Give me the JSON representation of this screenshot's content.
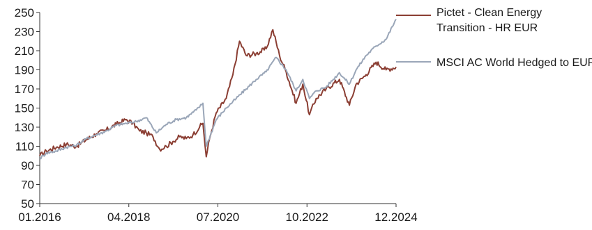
{
  "chart_data": {
    "type": "line",
    "x_tick_labels": [
      "01.2016",
      "04.2018",
      "07.2020",
      "10.2022",
      "12.2024"
    ],
    "x_range": [
      "2016-01",
      "2024-12"
    ],
    "ylim": [
      50,
      250
    ],
    "y_ticks": [
      50,
      70,
      90,
      110,
      130,
      150,
      170,
      190,
      210,
      230,
      250
    ],
    "grid": false,
    "legend_position": "right",
    "series": [
      {
        "name": "Pictet - Clean Energy Transition - HR EUR",
        "legend_lines": [
          "Pictet - Clean Energy",
          "Transition - HR EUR"
        ],
        "color": "#8b3e33",
        "points": [
          [
            "2016-01",
            100
          ],
          [
            "2016-03",
            105
          ],
          [
            "2016-06",
            109
          ],
          [
            "2016-09",
            112
          ],
          [
            "2016-12",
            110
          ],
          [
            "2017-03",
            117
          ],
          [
            "2017-06",
            123
          ],
          [
            "2017-09",
            127
          ],
          [
            "2017-12",
            133
          ],
          [
            "2018-03",
            138
          ],
          [
            "2018-05",
            134
          ],
          [
            "2018-07",
            126
          ],
          [
            "2018-09",
            124
          ],
          [
            "2018-11",
            120
          ],
          [
            "2019-01",
            107
          ],
          [
            "2019-03",
            110
          ],
          [
            "2019-05",
            115
          ],
          [
            "2019-07",
            120
          ],
          [
            "2019-09",
            118
          ],
          [
            "2019-11",
            122
          ],
          [
            "2020-01",
            130
          ],
          [
            "2020-02",
            134
          ],
          [
            "2020-03",
            99
          ],
          [
            "2020-04",
            118
          ],
          [
            "2020-06",
            145
          ],
          [
            "2020-09",
            160
          ],
          [
            "2020-11",
            185
          ],
          [
            "2021-01",
            220
          ],
          [
            "2021-03",
            205
          ],
          [
            "2021-06",
            207
          ],
          [
            "2021-09",
            212
          ],
          [
            "2021-11",
            232
          ],
          [
            "2022-01",
            205
          ],
          [
            "2022-03",
            188
          ],
          [
            "2022-06",
            155
          ],
          [
            "2022-08",
            175
          ],
          [
            "2022-10",
            143
          ],
          [
            "2022-12",
            160
          ],
          [
            "2023-03",
            170
          ],
          [
            "2023-07",
            180
          ],
          [
            "2023-10",
            153
          ],
          [
            "2023-12",
            175
          ],
          [
            "2024-03",
            185
          ],
          [
            "2024-06",
            198
          ],
          [
            "2024-09",
            190
          ],
          [
            "2024-12",
            193
          ]
        ]
      },
      {
        "name": "MSCI AC World Hedged to EUR",
        "legend_lines": [
          "MSCI AC World Hedged to EUR"
        ],
        "color": "#9aa6b8",
        "points": [
          [
            "2016-01",
            97
          ],
          [
            "2016-03",
            103
          ],
          [
            "2016-06",
            105
          ],
          [
            "2016-09",
            109
          ],
          [
            "2016-12",
            111
          ],
          [
            "2017-03",
            118
          ],
          [
            "2017-06",
            122
          ],
          [
            "2017-09",
            126
          ],
          [
            "2017-12",
            132
          ],
          [
            "2018-03",
            134
          ],
          [
            "2018-06",
            136
          ],
          [
            "2018-09",
            140
          ],
          [
            "2018-12",
            124
          ],
          [
            "2019-03",
            133
          ],
          [
            "2019-06",
            138
          ],
          [
            "2019-09",
            140
          ],
          [
            "2019-12",
            148
          ],
          [
            "2020-02",
            155
          ],
          [
            "2020-03",
            110
          ],
          [
            "2020-06",
            138
          ],
          [
            "2020-09",
            150
          ],
          [
            "2020-12",
            160
          ],
          [
            "2021-03",
            170
          ],
          [
            "2021-06",
            180
          ],
          [
            "2021-09",
            188
          ],
          [
            "2021-12",
            203
          ],
          [
            "2022-03",
            190
          ],
          [
            "2022-06",
            168
          ],
          [
            "2022-08",
            180
          ],
          [
            "2022-10",
            160
          ],
          [
            "2022-12",
            168
          ],
          [
            "2023-03",
            172
          ],
          [
            "2023-07",
            187
          ],
          [
            "2023-10",
            175
          ],
          [
            "2023-12",
            190
          ],
          [
            "2024-03",
            205
          ],
          [
            "2024-06",
            215
          ],
          [
            "2024-09",
            222
          ],
          [
            "2024-12",
            243
          ]
        ]
      }
    ]
  }
}
